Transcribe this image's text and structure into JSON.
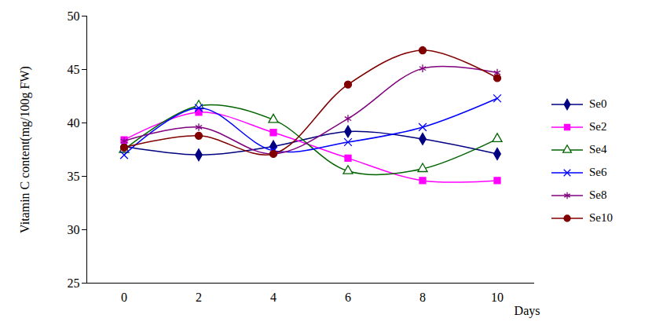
{
  "chart_data": {
    "type": "line",
    "x_label": "Days",
    "y_label": "Vitamin C content(mg/100g FW)",
    "x": [
      0,
      2,
      4,
      6,
      8,
      10
    ],
    "xlim": [
      -1,
      11
    ],
    "xticks": [
      0,
      2,
      4,
      6,
      8,
      10
    ],
    "ylim": [
      25,
      50
    ],
    "yticks": [
      25,
      30,
      35,
      40,
      45,
      50
    ],
    "grid": false,
    "legend": "right",
    "series": [
      {
        "name": "Se0",
        "color": "#000080",
        "marker": "diamond",
        "values": [
          37.8,
          37.0,
          37.8,
          39.2,
          38.5,
          37.1
        ]
      },
      {
        "name": "Se2",
        "color": "#ff00ff",
        "marker": "square",
        "values": [
          38.4,
          41.0,
          39.1,
          36.7,
          34.6,
          34.6
        ]
      },
      {
        "name": "Se4",
        "color": "#006400",
        "marker": "open-triangle",
        "values": [
          37.5,
          41.6,
          40.3,
          35.5,
          35.7,
          38.5
        ]
      },
      {
        "name": "Se6",
        "color": "#0000ff",
        "marker": "times",
        "values": [
          37.0,
          41.4,
          37.4,
          38.2,
          39.6,
          42.3
        ]
      },
      {
        "name": "Se8",
        "color": "#800080",
        "marker": "asterisk",
        "values": [
          38.3,
          39.6,
          37.1,
          40.4,
          45.1,
          44.7
        ]
      },
      {
        "name": "Se10",
        "color": "#800000",
        "marker": "circle",
        "values": [
          37.7,
          38.8,
          37.1,
          43.6,
          46.8,
          44.2
        ]
      }
    ]
  }
}
